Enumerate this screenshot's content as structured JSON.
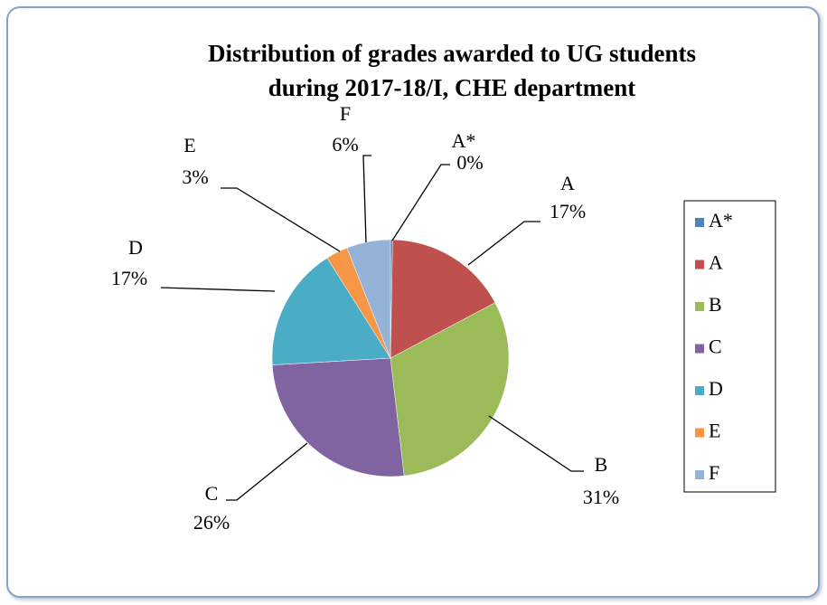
{
  "chart_data": {
    "type": "pie",
    "title": [
      "Distribution of grades awarded to UG students",
      "during 2017-18/I, CHE department"
    ],
    "categories": [
      "A*",
      "A",
      "B",
      "C",
      "D",
      "E",
      "F"
    ],
    "values": [
      0.3,
      17,
      31,
      26,
      17,
      3,
      6
    ],
    "value_labels": [
      "0%",
      "17%",
      "31%",
      "26%",
      "17%",
      "3%",
      "6%"
    ],
    "colors": [
      "#4f81bd",
      "#c0504d",
      "#9bbb59",
      "#8064a2",
      "#4bacc6",
      "#f79646",
      "#95b3d7"
    ],
    "legend": "right"
  }
}
